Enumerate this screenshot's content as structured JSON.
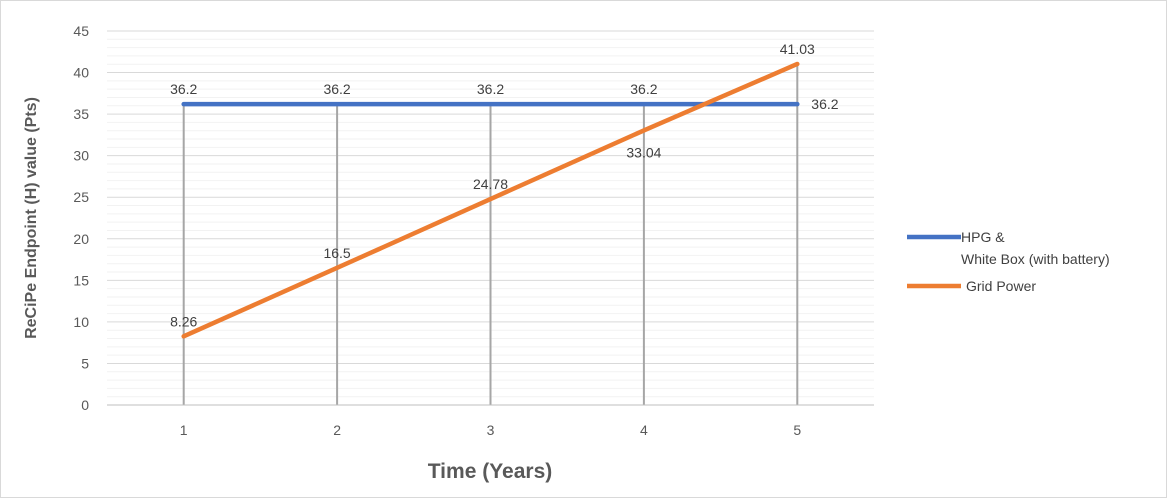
{
  "chart_data": {
    "type": "line",
    "title": "",
    "xlabel": "Time (Years)",
    "ylabel": "ReCiPe Endpoint (H) value (Pts)",
    "categories": [
      "1",
      "2",
      "3",
      "4",
      "5"
    ],
    "ylim": [
      0,
      45
    ],
    "yticks": [
      0,
      5,
      10,
      15,
      20,
      25,
      30,
      35,
      40,
      45
    ],
    "grid": "major and minor horizontal gridlines; vertical drop lines at each category",
    "legend_position": "right",
    "series": [
      {
        "name_lines": [
          "HPG &",
          "White Box (with battery)"
        ],
        "color": "#4472c4",
        "values": [
          36.2,
          36.2,
          36.2,
          36.2,
          36.2
        ],
        "labels": [
          "36.2",
          "36.2",
          "36.2",
          "36.2",
          "36.2"
        ]
      },
      {
        "name_lines": [
          "Grid Power"
        ],
        "color": "#ed7d31",
        "values": [
          8.26,
          16.5,
          24.78,
          33.04,
          41.03
        ],
        "labels": [
          "8.26",
          "16.5",
          "24.78",
          "33.04",
          "41.03"
        ]
      }
    ]
  }
}
